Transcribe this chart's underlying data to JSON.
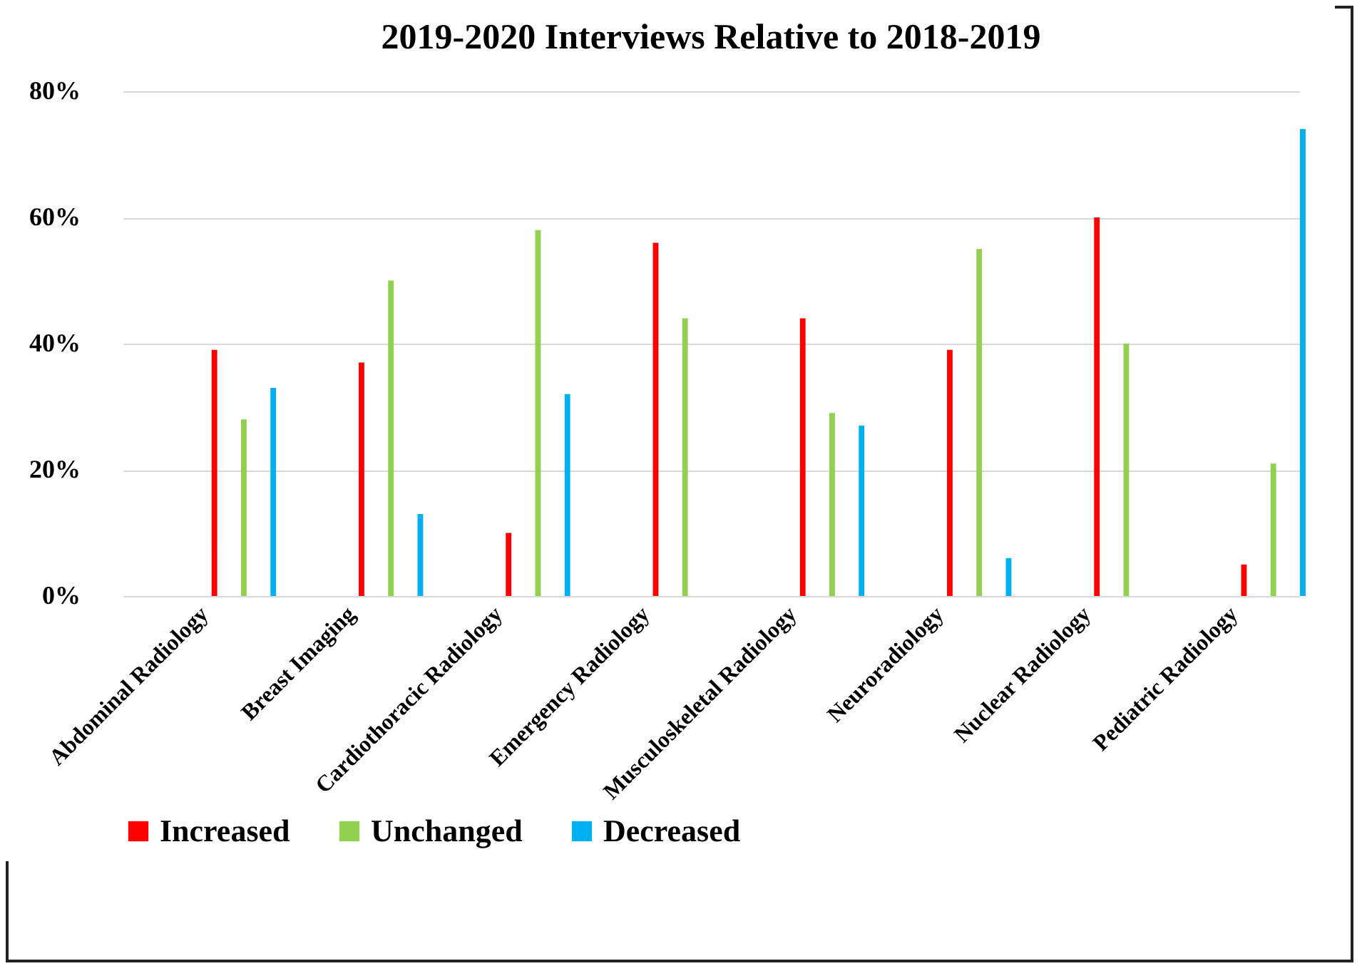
{
  "chart_data": {
    "type": "bar",
    "title": "2019-2020 Interviews Relative to 2018-2019",
    "categories": [
      "Abdominal Radiology",
      "Breast Imaging",
      "Cardiothoracic Radiology",
      "Emergency Radiology",
      "Musculoskeletal Radiology",
      "Neuroradiology",
      "Nuclear Radiology",
      "Pediatric Radiology"
    ],
    "series": [
      {
        "name": "Increased",
        "color": "#ff0000",
        "values": [
          39,
          37,
          10,
          56,
          44,
          39,
          60,
          5
        ]
      },
      {
        "name": "Unchanged",
        "color": "#92d050",
        "values": [
          28,
          50,
          58,
          44,
          29,
          55,
          40,
          21
        ]
      },
      {
        "name": "Decreased",
        "color": "#00b0f0",
        "values": [
          33,
          13,
          32,
          0,
          27,
          6,
          0,
          74
        ]
      }
    ],
    "ylim": [
      0,
      80
    ],
    "yticks": [
      {
        "value": 0,
        "label": "0%"
      },
      {
        "value": 20,
        "label": "20%"
      },
      {
        "value": 40,
        "label": "40%"
      },
      {
        "value": 60,
        "label": "60%"
      },
      {
        "value": 80,
        "label": "80%"
      }
    ],
    "grid": "y",
    "legend": "bottom"
  }
}
